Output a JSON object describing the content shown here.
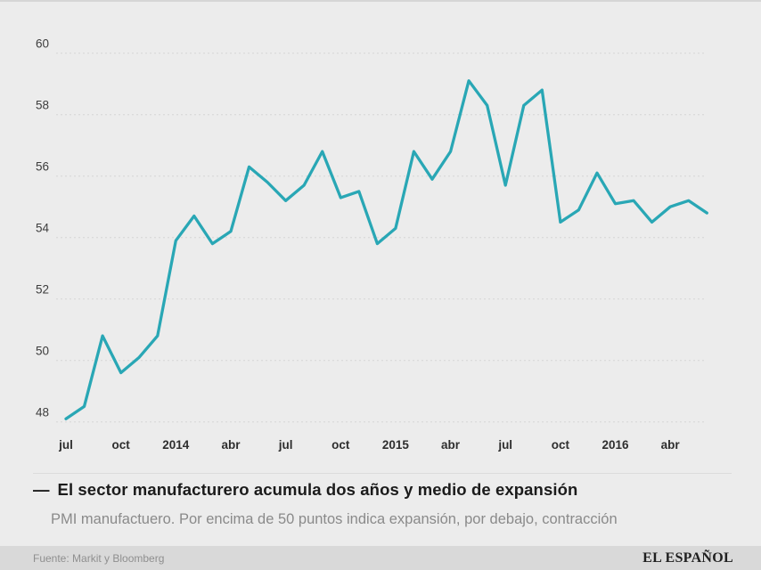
{
  "header": {
    "dash": "—",
    "title": "El sector manufacturero acumula dos años y medio de expansión",
    "subtitle": "PMI manufactuero. Por encima de 50 puntos indica expansión, por debajo, contracción"
  },
  "footer": {
    "source": "Fuente: Markit y Bloomberg",
    "brand": "EL ESPAÑOL"
  },
  "colors": {
    "background": "#ececec",
    "footer_bar": "#d9d9d9",
    "line": "#29a7b5",
    "grid": "#d5d5d5"
  },
  "chart_data": {
    "type": "line",
    "title": "El sector manufacturero acumula dos años y medio de expansión",
    "subtitle": "PMI manufactuero. Por encima de 50 puntos indica expansión, por debajo, contracción",
    "period": "jul 2013 – jun 2016, monthly",
    "values": [
      48.1,
      48.5,
      50.8,
      49.6,
      50.1,
      50.8,
      53.9,
      54.7,
      53.8,
      54.2,
      56.3,
      55.8,
      55.2,
      55.7,
      56.8,
      55.3,
      55.5,
      53.8,
      54.3,
      56.8,
      55.9,
      56.8,
      59.1,
      58.3,
      55.7,
      58.3,
      58.8,
      54.5,
      54.9,
      56.1,
      55.1,
      55.2,
      54.5,
      55.0,
      55.2,
      54.8
    ],
    "x_tick_labels": [
      {
        "index": 0,
        "label": "jul"
      },
      {
        "index": 3,
        "label": "oct"
      },
      {
        "index": 6,
        "label": "2014"
      },
      {
        "index": 9,
        "label": "abr"
      },
      {
        "index": 12,
        "label": "jul"
      },
      {
        "index": 15,
        "label": "oct"
      },
      {
        "index": 18,
        "label": "2015"
      },
      {
        "index": 21,
        "label": "abr"
      },
      {
        "index": 24,
        "label": "jul"
      },
      {
        "index": 27,
        "label": "oct"
      },
      {
        "index": 30,
        "label": "2016"
      },
      {
        "index": 33,
        "label": "abr"
      }
    ],
    "y_ticks": [
      48,
      50,
      52,
      54,
      56,
      58,
      60
    ],
    "ylim": [
      48,
      60
    ],
    "grid": "horizontal-dashed",
    "legend": "none",
    "line_color": "#29a7b5"
  }
}
